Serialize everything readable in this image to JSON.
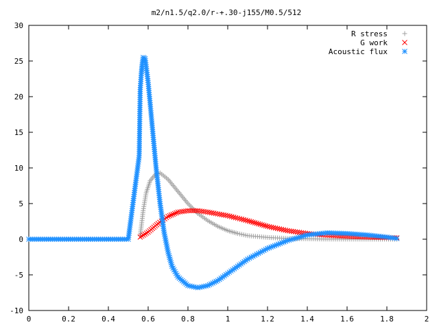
{
  "chart_data": {
    "type": "scatter",
    "title": "m2/n1.5/q2.0/r-+.30-j155/M0.5/512",
    "xlabel": "",
    "ylabel": "",
    "xlim": [
      0,
      2
    ],
    "ylim": [
      -10,
      30
    ],
    "x_ticks": [
      "0",
      "0.2",
      "0.4",
      "0.6",
      "0.8",
      "1",
      "1.2",
      "1.4",
      "1.6",
      "1.8",
      "2"
    ],
    "y_ticks": [
      "-10",
      "-5",
      "0",
      "5",
      "10",
      "15",
      "20",
      "25",
      "30"
    ],
    "grid": false,
    "legend_position": "top-right",
    "series": [
      {
        "name": "R stress",
        "marker": "plus",
        "color": "#a0a0a0",
        "points": [
          [
            0.56,
            0.5
          ],
          [
            0.575,
            4.0
          ],
          [
            0.59,
            6.5
          ],
          [
            0.61,
            8.2
          ],
          [
            0.64,
            9.2
          ],
          [
            0.66,
            9.3
          ],
          [
            0.7,
            8.4
          ],
          [
            0.75,
            6.7
          ],
          [
            0.8,
            5.0
          ],
          [
            0.85,
            3.6
          ],
          [
            0.9,
            2.6
          ],
          [
            0.95,
            1.8
          ],
          [
            1.0,
            1.2
          ],
          [
            1.05,
            0.8
          ],
          [
            1.1,
            0.5
          ],
          [
            1.2,
            0.25
          ],
          [
            1.3,
            0.1
          ],
          [
            1.5,
            0.02
          ],
          [
            1.85,
            0.0
          ]
        ]
      },
      {
        "name": "G work",
        "marker": "x",
        "color": "#ff0000",
        "points": [
          [
            0.56,
            0.3
          ],
          [
            0.6,
            1.0
          ],
          [
            0.65,
            2.2
          ],
          [
            0.7,
            3.2
          ],
          [
            0.75,
            3.8
          ],
          [
            0.8,
            4.0
          ],
          [
            0.85,
            4.0
          ],
          [
            0.9,
            3.8
          ],
          [
            1.0,
            3.3
          ],
          [
            1.1,
            2.6
          ],
          [
            1.2,
            1.8
          ],
          [
            1.3,
            1.2
          ],
          [
            1.4,
            0.8
          ],
          [
            1.5,
            0.55
          ],
          [
            1.6,
            0.4
          ],
          [
            1.7,
            0.3
          ],
          [
            1.85,
            0.2
          ]
        ]
      },
      {
        "name": "Acoustic flux",
        "marker": "star",
        "color": "#1e90ff",
        "points": [
          [
            0.0,
            0.0
          ],
          [
            0.1,
            0.0
          ],
          [
            0.2,
            0.0
          ],
          [
            0.3,
            0.0
          ],
          [
            0.4,
            0.0
          ],
          [
            0.5,
            0.0
          ],
          [
            0.555,
            11.7
          ],
          [
            0.56,
            21.0
          ],
          [
            0.565,
            23.0
          ],
          [
            0.57,
            24.5
          ],
          [
            0.575,
            25.5
          ],
          [
            0.585,
            25.3
          ],
          [
            0.6,
            22.0
          ],
          [
            0.62,
            16.0
          ],
          [
            0.64,
            10.0
          ],
          [
            0.66,
            5.0
          ],
          [
            0.68,
            1.0
          ],
          [
            0.7,
            -1.8
          ],
          [
            0.72,
            -3.8
          ],
          [
            0.75,
            -5.3
          ],
          [
            0.8,
            -6.5
          ],
          [
            0.85,
            -6.8
          ],
          [
            0.9,
            -6.5
          ],
          [
            0.95,
            -5.8
          ],
          [
            1.0,
            -4.8
          ],
          [
            1.05,
            -3.8
          ],
          [
            1.1,
            -2.8
          ],
          [
            1.2,
            -1.3
          ],
          [
            1.3,
            -0.2
          ],
          [
            1.4,
            0.6
          ],
          [
            1.5,
            0.9
          ],
          [
            1.6,
            0.8
          ],
          [
            1.7,
            0.6
          ],
          [
            1.8,
            0.3
          ],
          [
            1.85,
            0.1
          ]
        ]
      }
    ]
  }
}
